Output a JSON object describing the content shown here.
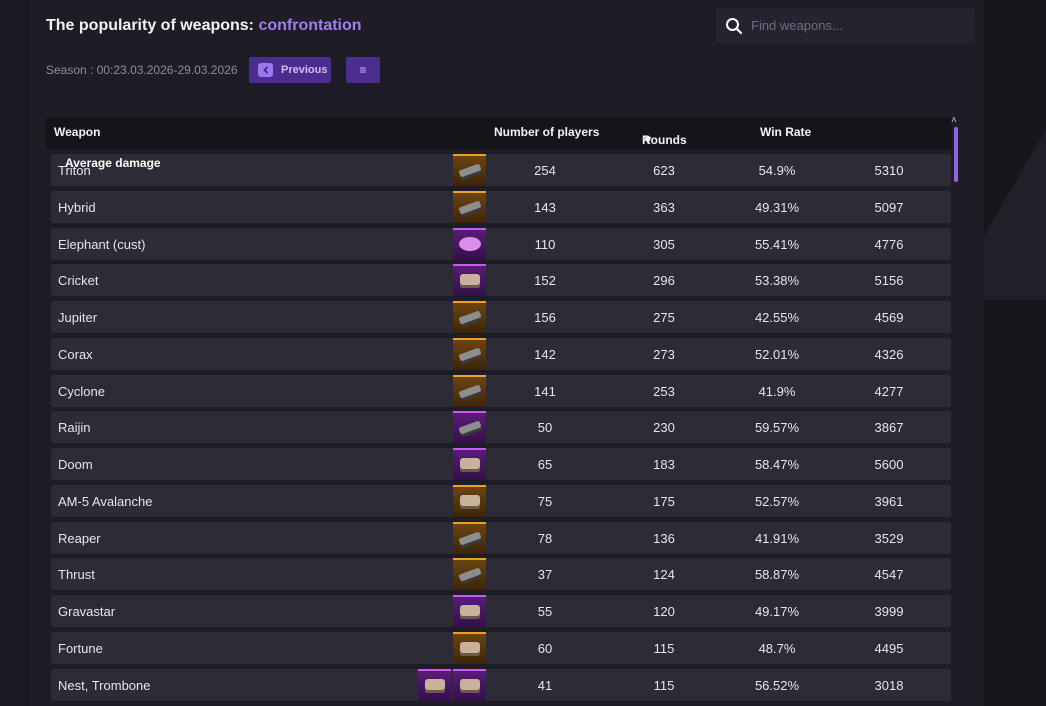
{
  "header": {
    "title_prefix": "The popularity of weapons: ",
    "title_mode": "confrontation",
    "season": "Season : 00:23.03.2026-29.03.2026",
    "prev_label": "Previous",
    "menu_label": "≡"
  },
  "search": {
    "placeholder": "Find weapons..."
  },
  "table": {
    "columns": {
      "weapon": "Weapon",
      "players": "Number of players",
      "rounds": "Rounds",
      "sort_indicator": "▼",
      "winrate": "Win Rate",
      "avg_damage": "Average damage"
    },
    "rows": [
      {
        "name": "Triton",
        "players": "254",
        "rounds": "623",
        "winrate": "54.9%",
        "damage": "5310",
        "rarity": [
          "orange"
        ],
        "icon": "gun"
      },
      {
        "name": "Hybrid",
        "players": "143",
        "rounds": "363",
        "winrate": "49.31%",
        "damage": "5097",
        "rarity": [
          "orange"
        ],
        "icon": "gun"
      },
      {
        "name": "Elephant (cust)",
        "players": "110",
        "rounds": "305",
        "winrate": "55.41%",
        "damage": "4776",
        "rarity": [
          "purple"
        ],
        "icon": "pink"
      },
      {
        "name": "Cricket",
        "players": "152",
        "rounds": "296",
        "winrate": "53.38%",
        "damage": "5156",
        "rarity": [
          "purple"
        ],
        "icon": "blob"
      },
      {
        "name": "Jupiter",
        "players": "156",
        "rounds": "275",
        "winrate": "42.55%",
        "damage": "4569",
        "rarity": [
          "orange"
        ],
        "icon": "gun"
      },
      {
        "name": "Corax",
        "players": "142",
        "rounds": "273",
        "winrate": "52.01%",
        "damage": "4326",
        "rarity": [
          "orange"
        ],
        "icon": "gun"
      },
      {
        "name": "Cyclone",
        "players": "141",
        "rounds": "253",
        "winrate": "41.9%",
        "damage": "4277",
        "rarity": [
          "orange"
        ],
        "icon": "gun"
      },
      {
        "name": "Raijin",
        "players": "50",
        "rounds": "230",
        "winrate": "59.57%",
        "damage": "3867",
        "rarity": [
          "purple"
        ],
        "icon": "gun"
      },
      {
        "name": "Doom",
        "players": "65",
        "rounds": "183",
        "winrate": "58.47%",
        "damage": "5600",
        "rarity": [
          "purple"
        ],
        "icon": "blob"
      },
      {
        "name": "AM-5 Avalanche",
        "players": "75",
        "rounds": "175",
        "winrate": "52.57%",
        "damage": "3961",
        "rarity": [
          "orange"
        ],
        "icon": "blob"
      },
      {
        "name": "Reaper",
        "players": "78",
        "rounds": "136",
        "winrate": "41.91%",
        "damage": "3529",
        "rarity": [
          "orange"
        ],
        "icon": "gun"
      },
      {
        "name": "Thrust",
        "players": "37",
        "rounds": "124",
        "winrate": "58.87%",
        "damage": "4547",
        "rarity": [
          "orange"
        ],
        "icon": "gun"
      },
      {
        "name": "Gravastar",
        "players": "55",
        "rounds": "120",
        "winrate": "49.17%",
        "damage": "3999",
        "rarity": [
          "purple"
        ],
        "icon": "blob"
      },
      {
        "name": "Fortune",
        "players": "60",
        "rounds": "115",
        "winrate": "48.7%",
        "damage": "4495",
        "rarity": [
          "orange"
        ],
        "icon": "blob"
      },
      {
        "name": "Nest, Trombone",
        "players": "41",
        "rounds": "115",
        "winrate": "56.52%",
        "damage": "3018",
        "rarity": [
          "purple",
          "purple"
        ],
        "icon": "blob"
      }
    ]
  },
  "colors": {
    "accent": "#a27cf0",
    "button": "#4b2d8f",
    "legendary": "#f0a020",
    "epic": "#c85cf0"
  }
}
